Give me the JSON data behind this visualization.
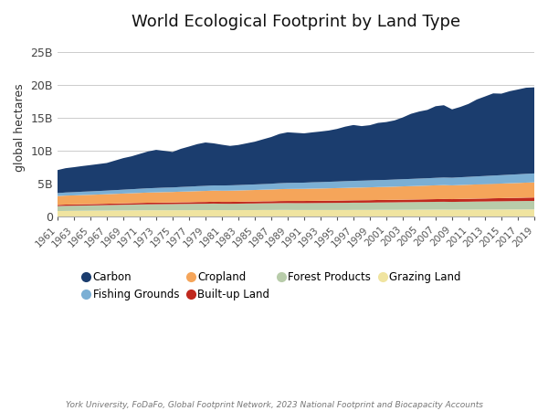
{
  "title": "World Ecological Footprint by Land Type",
  "ylabel": "global hectares",
  "source": "York University, FoDaFo, Global Footprint Network, 2023 National Footprint and Biocapacity Accounts",
  "years": [
    1961,
    1962,
    1963,
    1964,
    1965,
    1966,
    1967,
    1968,
    1969,
    1970,
    1971,
    1972,
    1973,
    1974,
    1975,
    1976,
    1977,
    1978,
    1979,
    1980,
    1981,
    1982,
    1983,
    1984,
    1985,
    1986,
    1987,
    1988,
    1989,
    1990,
    1991,
    1992,
    1993,
    1994,
    1995,
    1996,
    1997,
    1998,
    1999,
    2000,
    2001,
    2002,
    2003,
    2004,
    2005,
    2006,
    2007,
    2008,
    2009,
    2010,
    2011,
    2012,
    2013,
    2014,
    2015,
    2016,
    2017,
    2018,
    2019
  ],
  "series": {
    "Grazing Land": [
      0.85,
      0.87,
      0.88,
      0.89,
      0.9,
      0.91,
      0.92,
      0.93,
      0.94,
      0.95,
      0.96,
      0.97,
      0.97,
      0.97,
      0.97,
      0.98,
      0.98,
      0.99,
      0.99,
      1.0,
      0.99,
      0.98,
      0.99,
      1.0,
      1.0,
      1.01,
      1.01,
      1.02,
      1.02,
      1.01,
      1.01,
      1.01,
      1.01,
      1.01,
      1.01,
      1.01,
      1.02,
      1.02,
      1.02,
      1.03,
      1.03,
      1.03,
      1.04,
      1.04,
      1.05,
      1.05,
      1.06,
      1.06,
      1.05,
      1.06,
      1.06,
      1.07,
      1.07,
      1.08,
      1.08,
      1.09,
      1.09,
      1.1,
      1.1
    ],
    "Forest Products": [
      0.75,
      0.77,
      0.78,
      0.79,
      0.8,
      0.81,
      0.83,
      0.84,
      0.86,
      0.87,
      0.89,
      0.9,
      0.91,
      0.92,
      0.93,
      0.94,
      0.95,
      0.96,
      0.97,
      0.98,
      0.97,
      0.97,
      0.98,
      0.99,
      1.0,
      1.01,
      1.02,
      1.03,
      1.04,
      1.04,
      1.04,
      1.05,
      1.06,
      1.07,
      1.08,
      1.09,
      1.1,
      1.1,
      1.11,
      1.12,
      1.13,
      1.14,
      1.15,
      1.16,
      1.17,
      1.18,
      1.19,
      1.2,
      1.19,
      1.2,
      1.21,
      1.22,
      1.23,
      1.24,
      1.25,
      1.26,
      1.27,
      1.28,
      1.29
    ],
    "Built-up Land": [
      0.18,
      0.19,
      0.19,
      0.2,
      0.2,
      0.21,
      0.21,
      0.22,
      0.22,
      0.23,
      0.23,
      0.24,
      0.24,
      0.25,
      0.25,
      0.26,
      0.26,
      0.27,
      0.27,
      0.28,
      0.28,
      0.29,
      0.29,
      0.3,
      0.3,
      0.31,
      0.31,
      0.32,
      0.32,
      0.33,
      0.33,
      0.34,
      0.34,
      0.35,
      0.35,
      0.36,
      0.36,
      0.37,
      0.37,
      0.38,
      0.38,
      0.39,
      0.39,
      0.4,
      0.4,
      0.41,
      0.41,
      0.42,
      0.42,
      0.43,
      0.44,
      0.45,
      0.46,
      0.47,
      0.48,
      0.49,
      0.5,
      0.51,
      0.52
    ],
    "Cropland": [
      1.35,
      1.37,
      1.38,
      1.4,
      1.42,
      1.43,
      1.45,
      1.47,
      1.49,
      1.51,
      1.53,
      1.55,
      1.57,
      1.59,
      1.6,
      1.62,
      1.64,
      1.66,
      1.68,
      1.7,
      1.7,
      1.71,
      1.72,
      1.73,
      1.75,
      1.77,
      1.79,
      1.81,
      1.83,
      1.84,
      1.85,
      1.86,
      1.87,
      1.88,
      1.9,
      1.91,
      1.93,
      1.94,
      1.96,
      1.97,
      1.98,
      2.0,
      2.02,
      2.04,
      2.06,
      2.08,
      2.1,
      2.12,
      2.1,
      2.12,
      2.14,
      2.16,
      2.18,
      2.2,
      2.22,
      2.24,
      2.26,
      2.28,
      2.3
    ],
    "Fishing Grounds": [
      0.45,
      0.47,
      0.49,
      0.51,
      0.52,
      0.54,
      0.55,
      0.57,
      0.59,
      0.61,
      0.63,
      0.65,
      0.67,
      0.68,
      0.69,
      0.71,
      0.73,
      0.75,
      0.77,
      0.79,
      0.8,
      0.81,
      0.82,
      0.83,
      0.85,
      0.86,
      0.88,
      0.9,
      0.92,
      0.93,
      0.94,
      0.96,
      0.97,
      0.99,
      1.0,
      1.02,
      1.03,
      1.04,
      1.05,
      1.06,
      1.07,
      1.08,
      1.09,
      1.1,
      1.11,
      1.12,
      1.14,
      1.15,
      1.16,
      1.18,
      1.2,
      1.22,
      1.24,
      1.26,
      1.28,
      1.3,
      1.32,
      1.34,
      1.36
    ],
    "Carbon": [
      3.5,
      3.7,
      3.8,
      3.9,
      4.0,
      4.1,
      4.2,
      4.5,
      4.8,
      5.0,
      5.3,
      5.6,
      5.8,
      5.6,
      5.4,
      5.8,
      6.1,
      6.4,
      6.6,
      6.4,
      6.2,
      6.0,
      6.1,
      6.3,
      6.5,
      6.8,
      7.1,
      7.5,
      7.7,
      7.6,
      7.5,
      7.6,
      7.7,
      7.8,
      8.0,
      8.3,
      8.5,
      8.3,
      8.4,
      8.7,
      8.8,
      9.0,
      9.4,
      9.9,
      10.2,
      10.4,
      10.9,
      11.0,
      10.4,
      10.7,
      11.1,
      11.7,
      12.1,
      12.5,
      12.4,
      12.7,
      12.9,
      13.1,
      13.1
    ]
  },
  "colors": {
    "Carbon": "#1b3d6e",
    "Fishing Grounds": "#7bafd4",
    "Cropland": "#f5a55a",
    "Built-up Land": "#c0291e",
    "Forest Products": "#b8ccaa",
    "Grazing Land": "#f0e4a0"
  },
  "stack_order": [
    "Grazing Land",
    "Forest Products",
    "Built-up Land",
    "Cropland",
    "Fishing Grounds",
    "Carbon"
  ],
  "legend_order": [
    "Carbon",
    "Fishing Grounds",
    "Cropland",
    "Built-up Land",
    "Forest Products",
    "Grazing Land"
  ],
  "yticks": [
    0,
    5,
    10,
    15,
    20,
    25
  ],
  "ytick_labels": [
    "0",
    "5B",
    "10B",
    "15B",
    "20B",
    "25B"
  ],
  "ylim": [
    0,
    27
  ],
  "xlim": [
    1961,
    2019
  ],
  "background_color": "#ffffff",
  "grid_color": "#cccccc"
}
